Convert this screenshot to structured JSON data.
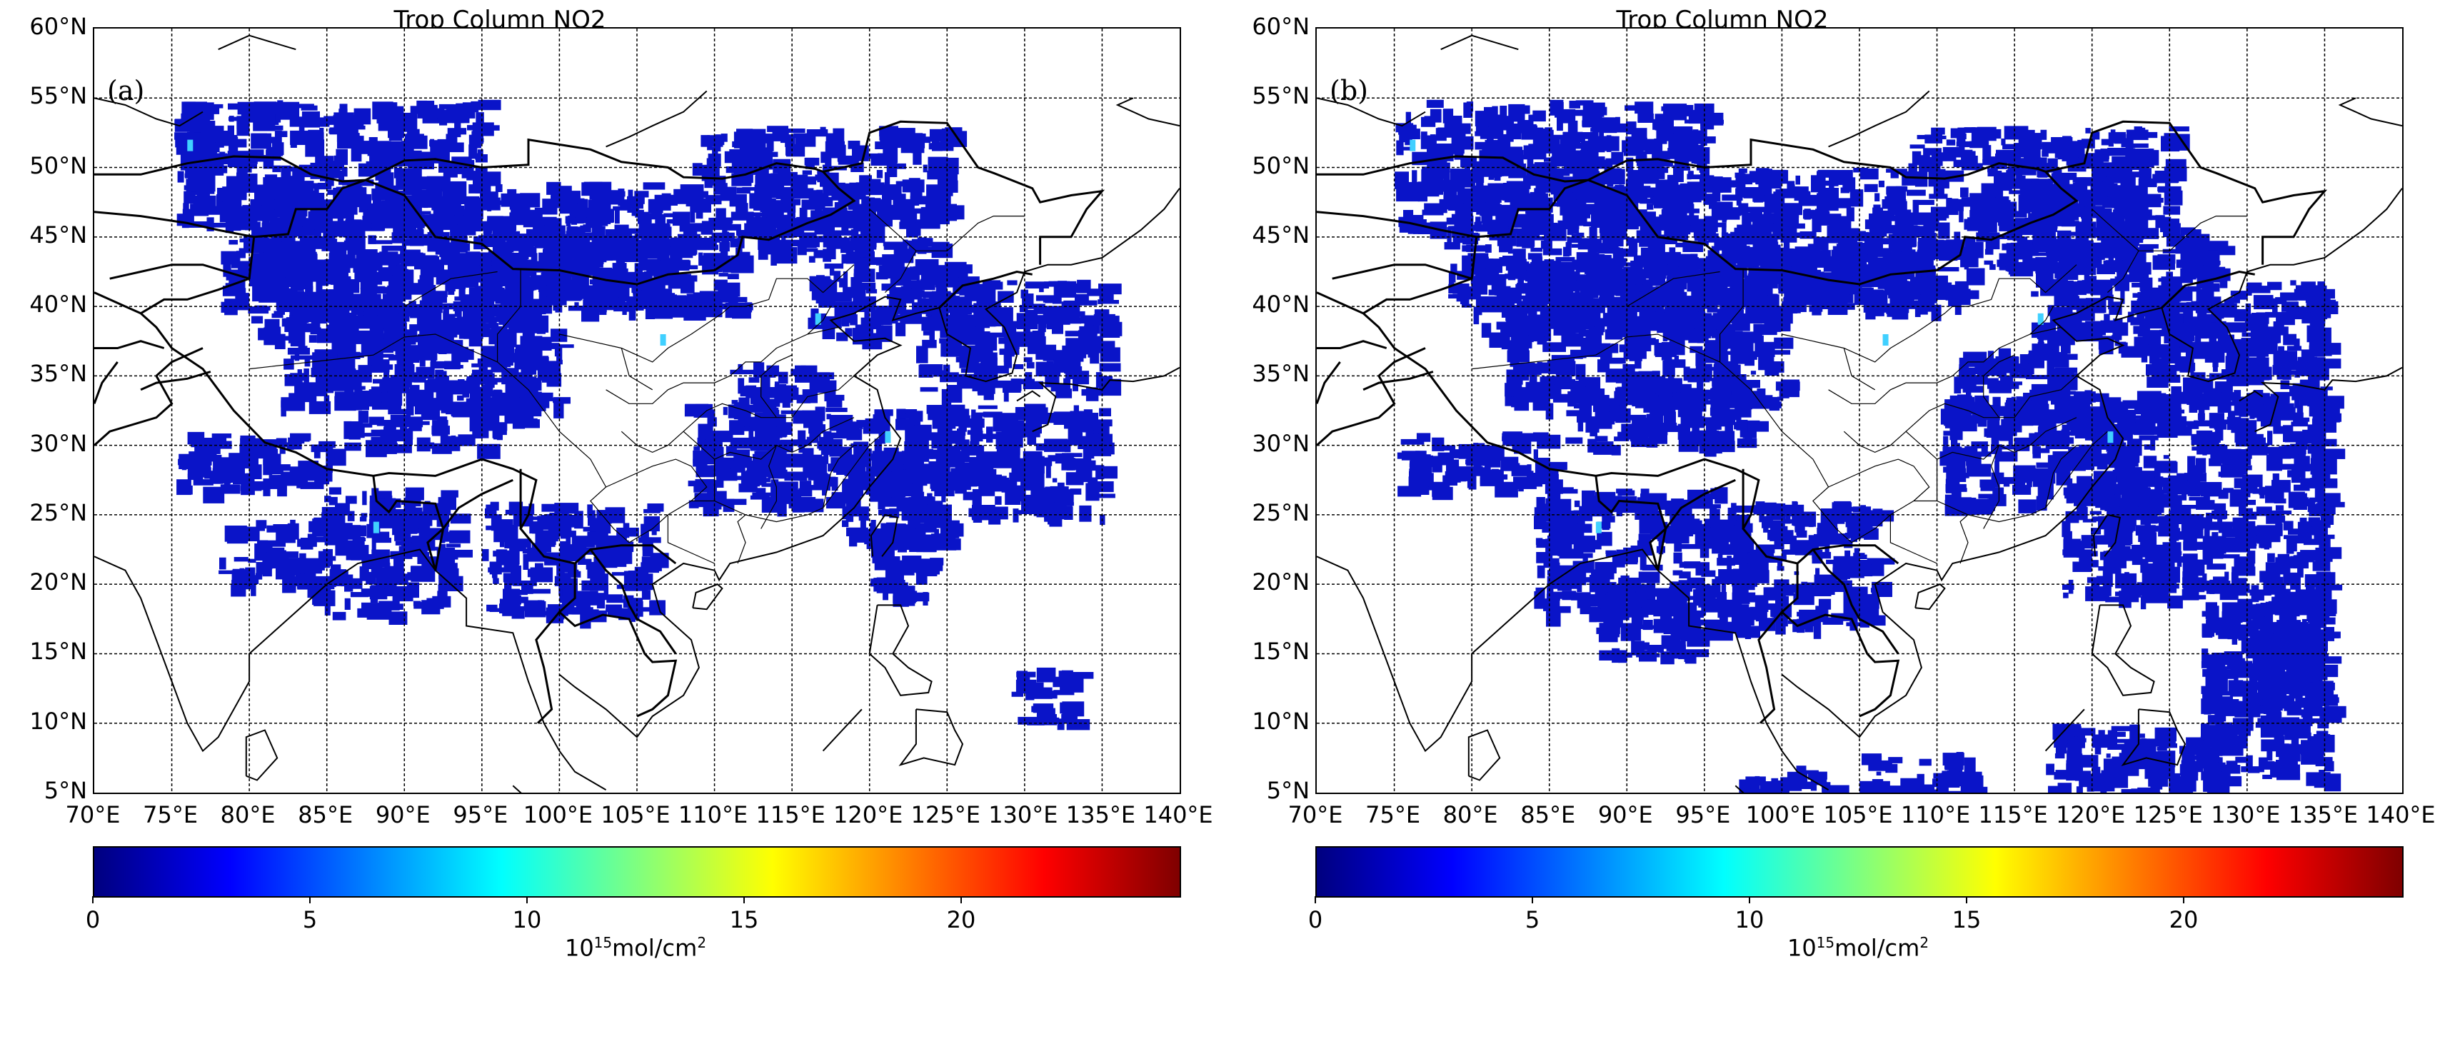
{
  "panels": [
    {
      "id": "a",
      "title": "Trop Column NO2",
      "label": "(a)",
      "lat_labels": [
        "60°N",
        "55°N",
        "50°N",
        "45°N",
        "40°N",
        "35°N",
        "30°N",
        "25°N",
        "20°N",
        "15°N",
        "10°N",
        "5°N"
      ],
      "lon_labels": [
        "70°E",
        "75°E",
        "80°E",
        "85°E",
        "90°E",
        "95°E",
        "100°E",
        "105°E",
        "110°E",
        "115°E",
        "120°E",
        "125°E",
        "130°E",
        "135°E",
        "140°E"
      ],
      "colorbar": {
        "ticks": [
          "0",
          "5",
          "10",
          "15",
          "20"
        ],
        "units_base": "10",
        "units_exp": "15",
        "units_rest": "mol/cm",
        "units_exp2": "2"
      }
    },
    {
      "id": "b",
      "title": "Trop Column NO2",
      "label": "(b)",
      "lat_labels": [
        "60°N",
        "55°N",
        "50°N",
        "45°N",
        "40°N",
        "35°N",
        "30°N",
        "25°N",
        "20°N",
        "15°N",
        "10°N",
        "5°N"
      ],
      "lon_labels": [
        "70°E",
        "75°E",
        "80°E",
        "85°E",
        "90°E",
        "95°E",
        "100°E",
        "105°E",
        "110°E",
        "115°E",
        "120°E",
        "125°E",
        "130°E",
        "135°E",
        "140°E"
      ],
      "colorbar": {
        "ticks": [
          "0",
          "5",
          "10",
          "15",
          "20"
        ],
        "units_base": "10",
        "units_exp": "15",
        "units_rest": "mol/cm",
        "units_exp2": "2"
      }
    }
  ],
  "colormap": {
    "name": "jet",
    "range": [
      0,
      25
    ],
    "stops": [
      "#00007f",
      "#0000ff",
      "#007fff",
      "#00ffff",
      "#7fff7f",
      "#ffff00",
      "#ff7f00",
      "#ff0000",
      "#7f0000"
    ]
  },
  "data_fill_color": "#0a14c8"
}
